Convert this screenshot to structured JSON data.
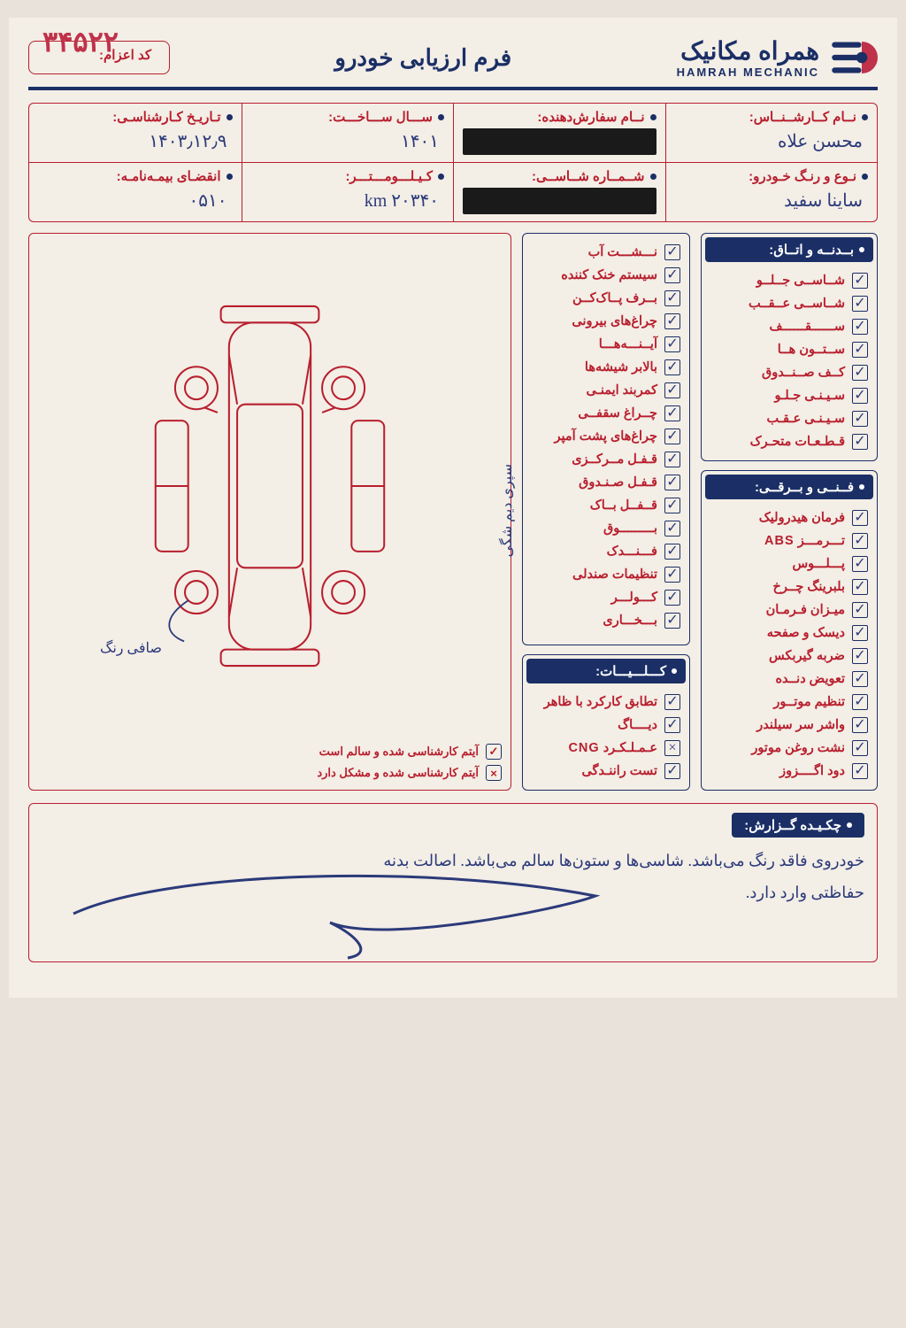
{
  "brand": {
    "fa": "همراه مکانیک",
    "en": "HAMRAH MECHANIC"
  },
  "form_title": "فرم ارزیابی خودرو",
  "dispatch_label": "کد اعزام:",
  "form_number": "۳۴۵۲۲",
  "colors": {
    "navy": "#1b2f66",
    "red": "#b81f2e",
    "ink": "#2b3a7a",
    "paper": "#f3eee6"
  },
  "info": [
    {
      "label": "نــام کــارشــنــاس:",
      "value": "محسن علاه",
      "redacted": false
    },
    {
      "label": "نــام سفارش‌دهنده:",
      "value": "",
      "redacted": true
    },
    {
      "label": "ســـال ســـاخـــت:",
      "value": "۱۴۰۱",
      "redacted": false
    },
    {
      "label": "تـاریـخ کـارشناسـی:",
      "value": "۱۴۰۳٫۱۲٫۹",
      "redacted": false
    },
    {
      "label": "نـوع و رنـگ خـودرو:",
      "value": "ساینا سفید",
      "redacted": false
    },
    {
      "label": "شــمــاره شــاســی:",
      "value": "",
      "redacted": true
    },
    {
      "label": "کـیـلـــومـــتـــر:",
      "value": "۲۰۳۴۰ km",
      "redacted": false
    },
    {
      "label": "انقضـای بیمـه‌نامـه:",
      "value": "۰۵۱۰",
      "redacted": false
    }
  ],
  "body_section": {
    "title": "بــدنــه و اتــاق:",
    "items": [
      {
        "label": "شــاســی جــلــو",
        "mark": "✓"
      },
      {
        "label": "شــاســی عــقــب",
        "mark": "✓"
      },
      {
        "label": "ســــــقــــــف",
        "mark": "✓"
      },
      {
        "label": "ســتــون هــا",
        "mark": "✓"
      },
      {
        "label": "کــف صــنــدوق",
        "mark": "✓"
      },
      {
        "label": "سـیـنـی جـلـو",
        "mark": "✓"
      },
      {
        "label": "سـیـنـی عـقـب",
        "mark": "✓"
      },
      {
        "label": "قـطـعـات متحـرک",
        "mark": "✓"
      }
    ]
  },
  "tech_section": {
    "title": "فــنــی و بــرقــی:",
    "items": [
      {
        "label": "فرمان هیدرولیک",
        "mark": "✓"
      },
      {
        "label": "تـــرمـــز ABS",
        "mark": "✓"
      },
      {
        "label": "پـــلـــوس",
        "mark": "✓"
      },
      {
        "label": "بلبرینگ چــرخ",
        "mark": "✓"
      },
      {
        "label": "میـزان فـرمـان",
        "mark": "✓"
      },
      {
        "label": "دیسک و صفحه",
        "mark": "✓"
      },
      {
        "label": "ضربه گیربکس",
        "mark": "✓"
      },
      {
        "label": "تعویض دنــده",
        "mark": "✓"
      },
      {
        "label": "تنظیم موتــور",
        "mark": "✓"
      },
      {
        "label": "واشر سر سیلندر",
        "mark": "✓"
      },
      {
        "label": "نشت روغن موتور",
        "mark": "✓"
      },
      {
        "label": "دود اگــــزوز",
        "mark": "✓"
      }
    ]
  },
  "equip_section": {
    "items": [
      {
        "label": "نـــشـــت آب",
        "mark": "✓"
      },
      {
        "label": "سیستم خنک کننده",
        "mark": "✓"
      },
      {
        "label": "بــرف پــاک‌کــن",
        "mark": "✓"
      },
      {
        "label": "چراغ‌های بیرونی",
        "mark": "✓"
      },
      {
        "label": "آیــنـــه‌هـــا",
        "mark": "✓"
      },
      {
        "label": "بالابر شیشه‌ها",
        "mark": "✓"
      },
      {
        "label": "کمربند ایمنـی",
        "mark": "✓"
      },
      {
        "label": "چــراغ سقفــی",
        "mark": "✓"
      },
      {
        "label": "چراغ‌های پشت آمپر",
        "mark": "✓"
      },
      {
        "label": "قـفـل مــرکــزی",
        "mark": "✓"
      },
      {
        "label": "قـفـل صـنـدوق",
        "mark": "✓"
      },
      {
        "label": "قــفــل بــاک",
        "mark": "✓"
      },
      {
        "label": "بـــــــــوق",
        "mark": "✓"
      },
      {
        "label": "فـــنـــدک",
        "mark": "✓"
      },
      {
        "label": "تنظیمات صندلی",
        "mark": "✓"
      },
      {
        "label": "کـــولـــر",
        "mark": "✓"
      },
      {
        "label": "بـــخـــاری",
        "mark": "✓"
      }
    ]
  },
  "general_section": {
    "title": "کـــلـــیـــات:",
    "items": [
      {
        "label": "تطابق کارکرد با ظاهر",
        "mark": "✓"
      },
      {
        "label": "دیــــاگ",
        "mark": "✓"
      },
      {
        "label": "عـمـلـکـرد CNG",
        "mark": "×"
      },
      {
        "label": "تست راننـدگی",
        "mark": "✓"
      }
    ]
  },
  "legend": {
    "ok": "آیتم کارشناسی شده و سالم است",
    "bad": "آیتم کارشناسی شده و مشکل دارد",
    "ok_sym": "✓",
    "bad_sym": "×"
  },
  "diagram_annotations": {
    "right_side": "سپری دیم شگی",
    "wheel_note": "صافی\nرنگ"
  },
  "report": {
    "title": "چکـیـده گــزارش:",
    "line1": "خودروی فاقد رنگ می‌باشد. شاسی‌ها و ستون‌ها سالم می‌باشد. اصالت بدنه",
    "line2": "حفاظتی وارد دارد."
  }
}
